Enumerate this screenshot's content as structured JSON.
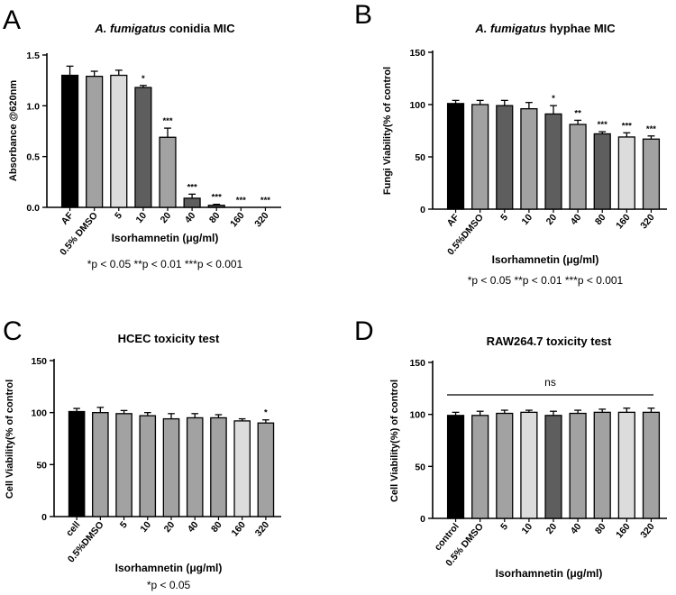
{
  "colors": {
    "black": "#000000",
    "light": "#dcdcdc",
    "mid": "#a2a2a2",
    "dark": "#5e5e5e",
    "axis": "#000000"
  },
  "chart_data": [
    {
      "panel": "A",
      "type": "bar",
      "title": {
        "italic": "A. fumigatus",
        "rest": " conidia  MIC"
      },
      "ylabel": "Absorbance @620nm",
      "xlabel": "Isorhamnetin (μg/ml)",
      "note": "*p < 0.05  **p < 0.01  ***p < 0.001",
      "ylim": [
        0,
        1.5
      ],
      "yticks": [
        "0.0",
        "0.5",
        "1.0",
        "1.5"
      ],
      "ytick_values": [
        0,
        0.5,
        1.0,
        1.5
      ],
      "categories": [
        "AF",
        "0.5% DMSO",
        "5",
        "10",
        "20",
        "40",
        "80",
        "160",
        "320"
      ],
      "values": [
        1.3,
        1.29,
        1.3,
        1.18,
        0.69,
        0.09,
        0.02,
        0.0,
        0.0
      ],
      "errors": [
        0.09,
        0.05,
        0.05,
        0.02,
        0.09,
        0.04,
        0.01,
        0.0,
        0.0
      ],
      "fills": [
        "black",
        "mid",
        "light",
        "dark",
        "mid",
        "dark",
        "dark",
        "dark",
        "dark"
      ],
      "significance": [
        "",
        "",
        "",
        "*",
        "***",
        "***",
        "***",
        "***",
        "***"
      ]
    },
    {
      "panel": "B",
      "type": "bar",
      "title": {
        "italic": "A. fumigatus",
        "rest": " hyphae MIC"
      },
      "ylabel": "Fungi  Viability(% of control",
      "xlabel": "Isorhamnetin (μg/ml)",
      "note": "*p < 0.05  **p < 0.01  ***p < 0.001",
      "ylim": [
        0,
        150
      ],
      "yticks": [
        "0",
        "50",
        "100",
        "150"
      ],
      "ytick_values": [
        0,
        50,
        100,
        150
      ],
      "categories": [
        "AF",
        "0.5%DMSO",
        "5",
        "10",
        "20",
        "40",
        "80",
        "160",
        "320"
      ],
      "values": [
        101,
        100,
        99,
        96,
        91,
        81,
        72,
        69,
        67
      ],
      "errors": [
        3,
        4,
        5,
        6,
        8,
        4,
        2,
        4,
        3
      ],
      "fills": [
        "black",
        "mid",
        "dark",
        "mid",
        "dark",
        "mid",
        "dark",
        "light",
        "mid"
      ],
      "significance": [
        "",
        "",
        "",
        "",
        "*",
        "**",
        "***",
        "***",
        "***"
      ]
    },
    {
      "panel": "C",
      "type": "bar",
      "title": {
        "italic": "",
        "rest": "HCEC toxicity test"
      },
      "ylabel": "Cell  Viability(% of control",
      "xlabel": "Isorhamnetin (μg/ml)",
      "note": "*p < 0.05",
      "ylim": [
        0,
        150
      ],
      "yticks": [
        "0",
        "50",
        "100",
        "150"
      ],
      "ytick_values": [
        0,
        50,
        100,
        150
      ],
      "categories": [
        "cell",
        "0.5%DMSO",
        "5",
        "10",
        "20",
        "40",
        "80",
        "160",
        "320"
      ],
      "values": [
        101,
        100,
        99,
        97,
        94,
        95,
        95,
        92,
        90
      ],
      "errors": [
        3,
        5,
        3,
        3,
        5,
        4,
        3,
        2,
        3
      ],
      "fills": [
        "black",
        "mid",
        "mid",
        "mid",
        "mid",
        "mid",
        "mid",
        "light",
        "mid"
      ],
      "significance": [
        "",
        "",
        "",
        "",
        "",
        "",
        "",
        "",
        "*"
      ]
    },
    {
      "panel": "D",
      "type": "bar",
      "title": {
        "italic": "",
        "rest": "RAW264.7 toxicity test"
      },
      "ylabel": "Cell Viability(%) of control",
      "xlabel": "Isorhamnetin (μg/ml)",
      "note": "",
      "ylim": [
        0,
        150
      ],
      "yticks": [
        "0",
        "50",
        "100",
        "150"
      ],
      "ytick_values": [
        0,
        50,
        100,
        150
      ],
      "categories": [
        "control",
        "0.5% DMSO",
        "5",
        "10",
        "20",
        "40",
        "80",
        "160",
        "320"
      ],
      "values": [
        99,
        99,
        101,
        102,
        99,
        101,
        102,
        102,
        102
      ],
      "errors": [
        3,
        4,
        3,
        2,
        4,
        3,
        3,
        4,
        4
      ],
      "fills": [
        "black",
        "mid",
        "mid",
        "light",
        "dark",
        "mid",
        "mid",
        "light",
        "mid"
      ],
      "significance": [
        "",
        "",
        "",
        "",
        "",
        "",
        "",
        "",
        ""
      ],
      "bracket_label": "ns"
    }
  ]
}
